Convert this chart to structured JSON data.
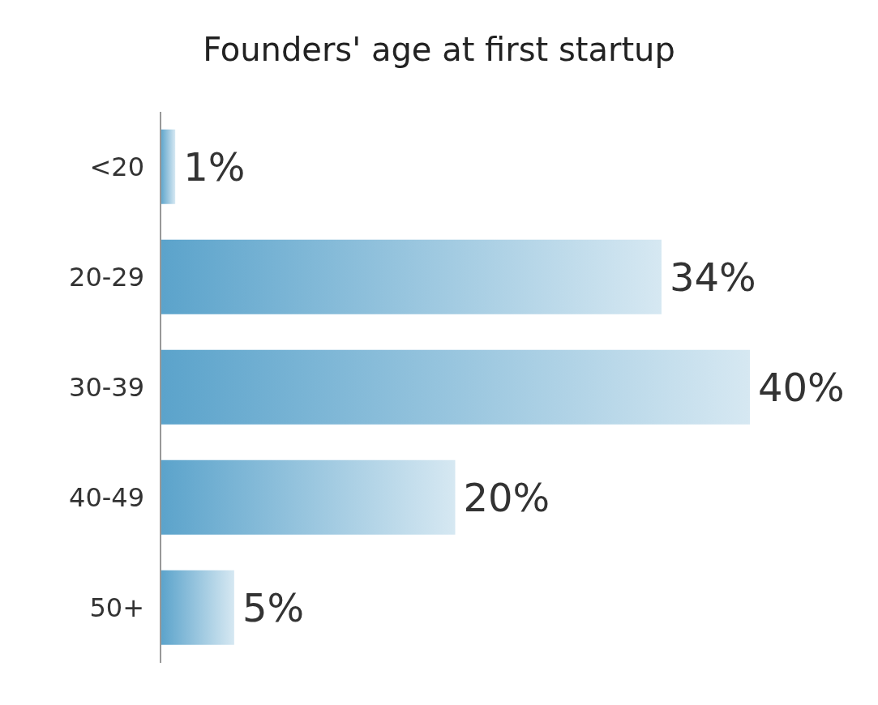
{
  "chart_data": {
    "type": "bar",
    "title": "Founders' age at first startup",
    "orientation": "horizontal",
    "categories": [
      "<20",
      "20-29",
      "30-39",
      "40-49",
      "50+"
    ],
    "values": [
      1,
      34,
      40,
      20,
      5
    ],
    "value_labels": [
      "1%",
      "34%",
      "40%",
      "20%",
      "5%"
    ],
    "color": "#5ba3cb",
    "tick_labels": "y"
  }
}
